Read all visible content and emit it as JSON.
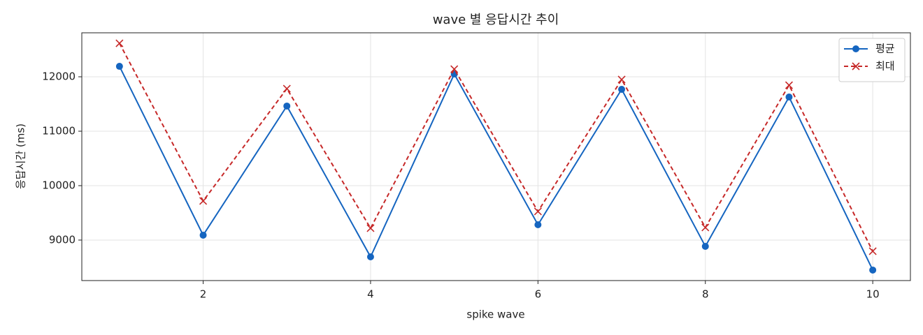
{
  "chart_data": {
    "type": "line",
    "title": "wave 별 응답시간 추이",
    "x_label": "spike wave",
    "y_label": "응답시간 (ms)",
    "x": [
      1,
      2,
      3,
      4,
      5,
      6,
      7,
      8,
      9,
      10
    ],
    "series": [
      {
        "name": "평균",
        "color": "#1565c0",
        "marker": "o",
        "linestyle": "solid",
        "values": [
          12192,
          9090,
          11462,
          8692,
          12051,
          9282,
          11769,
          8885,
          11628,
          8449
        ]
      },
      {
        "name": "최대",
        "color": "#c62828",
        "marker": "x",
        "linestyle": "dashed",
        "values": [
          12615,
          9718,
          11782,
          9218,
          12141,
          9526,
          11949,
          9231,
          11846,
          8795
        ]
      }
    ],
    "xlim": [
      0.55,
      10.45
    ],
    "ylim": [
      8256,
      12808
    ],
    "xticks": [
      2,
      4,
      6,
      8,
      10
    ],
    "yticks": [
      9000,
      10000,
      11000,
      12000
    ],
    "grid": true,
    "legend_position": "upper-right"
  }
}
